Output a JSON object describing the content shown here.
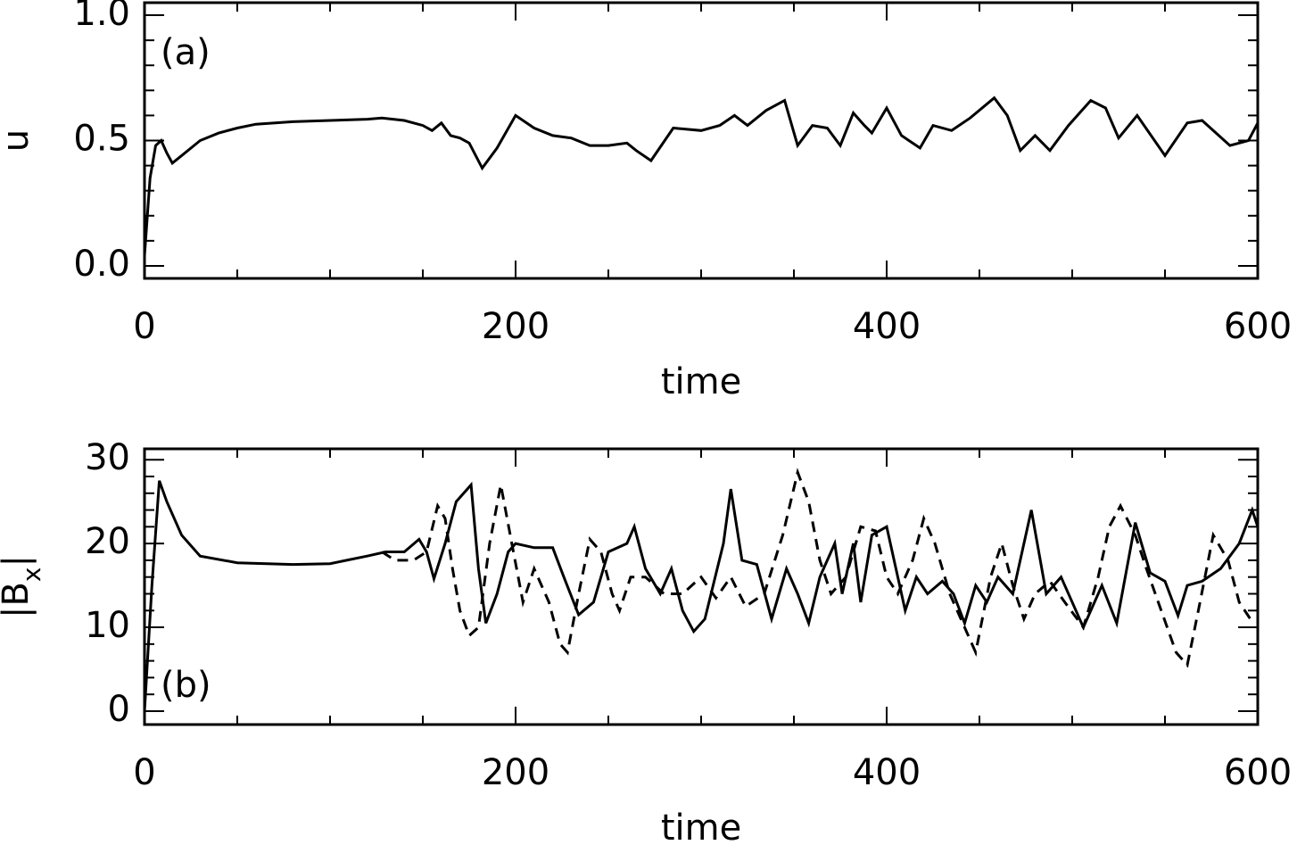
{
  "chart_data": [
    {
      "type": "line",
      "annotation": "(a)",
      "xlabel": "time",
      "ylabel": [
        "u"
      ],
      "xlim": [
        0,
        600
      ],
      "xticks": [
        0,
        200,
        400,
        600
      ],
      "xminorticks": [
        50,
        100,
        150,
        250,
        300,
        350,
        450,
        500,
        550
      ],
      "ylim": [
        -0.05,
        1.05
      ],
      "yticks": [
        {
          "value": 0,
          "label": "0.0"
        },
        0.5,
        {
          "value": 1,
          "label": "1.0"
        }
      ],
      "yminorticks": [
        0.1,
        0.2,
        0.3,
        0.4,
        0.6,
        0.7,
        0.8,
        0.9
      ],
      "series": [
        {
          "color": "#000000",
          "dash": "solid",
          "x": [
            0,
            3,
            6,
            9,
            12,
            15,
            20,
            30,
            40,
            50,
            60,
            80,
            100,
            120,
            128,
            140,
            150,
            155,
            160,
            165,
            170,
            175,
            182,
            190,
            200,
            210,
            220,
            230,
            240,
            250,
            260,
            265,
            273,
            285,
            300,
            310,
            318,
            325,
            335,
            345,
            352,
            360,
            368,
            375,
            382,
            388,
            392,
            400,
            408,
            418,
            425,
            435,
            445,
            458,
            465,
            472,
            480,
            488,
            498,
            510,
            518,
            525,
            535,
            550,
            562,
            570,
            585,
            595,
            600
          ],
          "values": [
            0.04,
            0.35,
            0.48,
            0.5,
            0.45,
            0.41,
            0.44,
            0.5,
            0.53,
            0.55,
            0.565,
            0.575,
            0.58,
            0.585,
            0.59,
            0.58,
            0.56,
            0.54,
            0.57,
            0.52,
            0.51,
            0.49,
            0.39,
            0.47,
            0.6,
            0.55,
            0.52,
            0.51,
            0.48,
            0.48,
            0.49,
            0.46,
            0.42,
            0.55,
            0.54,
            0.56,
            0.6,
            0.56,
            0.62,
            0.66,
            0.48,
            0.56,
            0.55,
            0.48,
            0.61,
            0.56,
            0.53,
            0.63,
            0.52,
            0.47,
            0.56,
            0.54,
            0.59,
            0.67,
            0.6,
            0.46,
            0.52,
            0.46,
            0.56,
            0.66,
            0.63,
            0.51,
            0.6,
            0.44,
            0.57,
            0.58,
            0.48,
            0.5,
            0.57
          ]
        }
      ]
    },
    {
      "type": "line",
      "annotation": "(b)",
      "xlabel": "time",
      "ylabel": [
        "|B",
        "x",
        "|"
      ],
      "xlim": [
        0,
        600
      ],
      "xticks": [
        0,
        200,
        400,
        600
      ],
      "xminorticks": [
        50,
        100,
        150,
        250,
        300,
        350,
        450,
        500,
        550
      ],
      "ylim": [
        -1.6,
        31.3
      ],
      "yticks": [
        0,
        10,
        20,
        30
      ],
      "yminorticks": [
        2,
        4,
        6,
        8,
        12,
        14,
        16,
        18,
        22,
        24,
        26,
        28
      ],
      "series": [
        {
          "color": "#000000",
          "dash": "solid",
          "x": [
            0,
            4,
            8,
            12,
            20,
            30,
            50,
            80,
            100,
            120,
            130,
            140,
            148,
            152,
            156,
            162,
            168,
            172,
            176,
            180,
            184,
            190,
            196,
            200,
            210,
            220,
            226,
            234,
            242,
            250,
            260,
            264,
            270,
            278,
            284,
            290,
            296,
            302,
            312,
            316,
            322,
            330,
            338,
            346,
            352,
            358,
            364,
            372,
            376,
            382,
            386,
            392,
            400,
            410,
            416,
            422,
            430,
            436,
            442,
            448,
            454,
            460,
            468,
            478,
            486,
            494,
            506,
            516,
            524,
            534,
            542,
            550,
            557,
            562,
            570,
            580,
            590,
            597,
            600
          ],
          "values": [
            0,
            15,
            27.5,
            25,
            21,
            18.5,
            17.7,
            17.5,
            17.6,
            18.5,
            19,
            19,
            20.5,
            19,
            15.8,
            20,
            25,
            26,
            27,
            17,
            10.5,
            14,
            19,
            20,
            19.5,
            19.5,
            16,
            11.5,
            13,
            19,
            20,
            22,
            17,
            14,
            17,
            12,
            9.5,
            11,
            20,
            26.5,
            18,
            17.5,
            11,
            17,
            14,
            10.5,
            16,
            20,
            14,
            20,
            13,
            21,
            22,
            12,
            16,
            14,
            15.5,
            14,
            10.5,
            15,
            13,
            16,
            14,
            24,
            14,
            16,
            10,
            15,
            10.5,
            22.5,
            16.5,
            15.5,
            11.4,
            15,
            15.5,
            17,
            20,
            24,
            22
          ]
        },
        {
          "color": "#000000",
          "dash": "dashed",
          "x": [
            128,
            135,
            145,
            152,
            158,
            162,
            166,
            170,
            175,
            180,
            186,
            192,
            198,
            204,
            210,
            218,
            224,
            228,
            234,
            240,
            246,
            252,
            256,
            262,
            270,
            280,
            290,
            300,
            308,
            316,
            324,
            334,
            344,
            352,
            358,
            364,
            370,
            378,
            386,
            394,
            400,
            406,
            414,
            420,
            426,
            434,
            442,
            448,
            456,
            462,
            468,
            474,
            480,
            488,
            496,
            506,
            514,
            520,
            526,
            534,
            540,
            548,
            556,
            562,
            568,
            576,
            584,
            590,
            596
          ],
          "values": [
            19,
            18,
            18,
            19,
            24.5,
            23,
            17,
            12,
            9,
            10,
            20,
            27,
            20,
            13,
            17,
            13,
            8,
            7,
            14,
            20.5,
            19,
            14,
            12,
            16,
            16,
            14,
            14,
            16,
            13.5,
            16,
            12.5,
            14,
            21,
            28.5,
            25,
            18,
            14,
            16,
            22,
            21.5,
            16,
            14,
            18,
            23,
            20,
            14,
            10,
            7,
            16,
            20,
            15,
            11,
            14,
            15.5,
            13,
            10,
            16,
            22,
            24.5,
            21,
            17,
            12,
            7,
            5.5,
            12,
            21,
            18,
            13,
            11
          ]
        }
      ]
    }
  ]
}
